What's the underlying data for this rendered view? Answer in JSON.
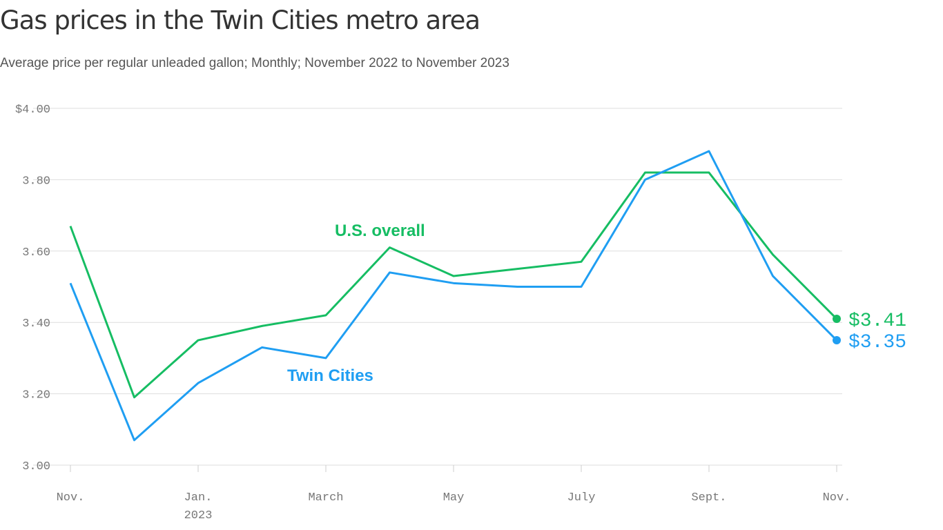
{
  "chart_data": {
    "type": "line",
    "title": "Gas prices in the Twin Cities metro area",
    "subtitle": "Average price per regular unleaded gallon; Monthly; November 2022 to November 2023",
    "categories": [
      "Nov.",
      null,
      "Jan.",
      null,
      "March",
      null,
      "May",
      null,
      "July",
      null,
      "Sept.",
      null,
      "Nov."
    ],
    "x_sublabels": [
      null,
      null,
      "2023",
      null,
      null,
      null,
      null,
      null,
      null,
      null,
      null,
      null,
      null
    ],
    "series": [
      {
        "name": "U.S. overall",
        "color": "#16bd63",
        "values": [
          3.67,
          3.19,
          3.35,
          3.39,
          3.42,
          3.61,
          3.53,
          3.55,
          3.57,
          3.82,
          3.82,
          3.59,
          3.41
        ],
        "value_labels": [
          null,
          null,
          null,
          null,
          null,
          null,
          null,
          null,
          null,
          null,
          null,
          null,
          "$3.41"
        ]
      },
      {
        "name": "Twin Cities",
        "color": "#1f9ef2",
        "values": [
          3.51,
          3.07,
          3.23,
          3.33,
          3.3,
          3.54,
          3.51,
          3.5,
          3.5,
          3.8,
          3.88,
          3.53,
          3.35
        ],
        "value_labels": [
          null,
          null,
          null,
          null,
          null,
          null,
          null,
          null,
          null,
          null,
          null,
          null,
          "$3.35"
        ]
      }
    ],
    "ylim": [
      3.0,
      4.0
    ],
    "yticks": [
      {
        "value": 3.0,
        "label": "3.00"
      },
      {
        "value": 3.2,
        "label": "3.20"
      },
      {
        "value": 3.4,
        "label": "3.40"
      },
      {
        "value": 3.6,
        "label": "3.60"
      },
      {
        "value": 3.8,
        "label": "3.80"
      },
      {
        "value": 4.0,
        "label": "$4.00"
      }
    ],
    "grid": true
  }
}
